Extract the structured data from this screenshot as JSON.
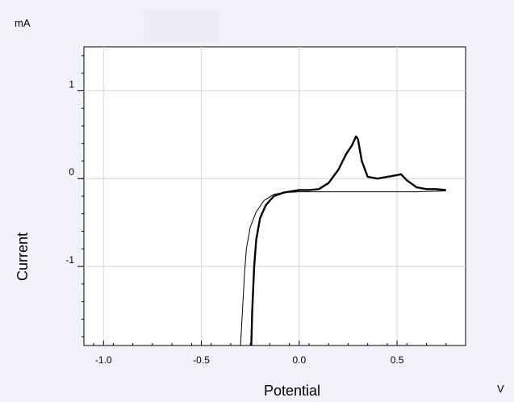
{
  "chart_data": {
    "type": "line",
    "ylabel": "Current",
    "xlabel": "Potential",
    "y_unit": "mA",
    "x_unit": "V",
    "xlim": [
      -1.1,
      0.85
    ],
    "ylim": [
      -1.9,
      1.5
    ],
    "x_ticks": [
      {
        "value": -1.0,
        "label": "-1.0"
      },
      {
        "value": -0.5,
        "label": "-0.5"
      },
      {
        "value": 0.0,
        "label": "0.0"
      },
      {
        "value": 0.5,
        "label": "0.5"
      }
    ],
    "y_ticks": [
      {
        "value": 1,
        "label": "1"
      },
      {
        "value": 0,
        "label": "0"
      },
      {
        "value": -1,
        "label": "-1"
      }
    ],
    "grid": true,
    "series": [
      {
        "style": "thick",
        "color": "#000000",
        "points": [
          [
            -0.245,
            -1.9
          ],
          [
            -0.24,
            -1.5
          ],
          [
            -0.23,
            -1.0
          ],
          [
            -0.22,
            -0.7
          ],
          [
            -0.2,
            -0.45
          ],
          [
            -0.17,
            -0.3
          ],
          [
            -0.13,
            -0.2
          ],
          [
            -0.08,
            -0.16
          ],
          [
            0.0,
            -0.13
          ],
          [
            0.05,
            -0.13
          ],
          [
            0.1,
            -0.12
          ],
          [
            0.15,
            -0.05
          ],
          [
            0.2,
            0.1
          ],
          [
            0.24,
            0.28
          ],
          [
            0.27,
            0.38
          ],
          [
            0.29,
            0.48
          ],
          [
            0.3,
            0.45
          ],
          [
            0.32,
            0.2
          ],
          [
            0.35,
            0.02
          ],
          [
            0.4,
            0.0
          ],
          [
            0.45,
            0.02
          ],
          [
            0.5,
            0.04
          ],
          [
            0.52,
            0.05
          ],
          [
            0.55,
            -0.02
          ],
          [
            0.6,
            -0.1
          ],
          [
            0.65,
            -0.12
          ],
          [
            0.7,
            -0.12
          ],
          [
            0.75,
            -0.13
          ]
        ]
      },
      {
        "style": "thin",
        "color": "#000000",
        "points": [
          [
            -0.3,
            -1.9
          ],
          [
            -0.29,
            -1.5
          ],
          [
            -0.28,
            -1.1
          ],
          [
            -0.27,
            -0.8
          ],
          [
            -0.25,
            -0.55
          ],
          [
            -0.22,
            -0.38
          ],
          [
            -0.18,
            -0.25
          ],
          [
            -0.13,
            -0.18
          ],
          [
            -0.08,
            -0.16
          ],
          [
            0.0,
            -0.15
          ],
          [
            0.2,
            -0.15
          ],
          [
            0.4,
            -0.15
          ],
          [
            0.6,
            -0.15
          ],
          [
            0.75,
            -0.14
          ]
        ]
      }
    ]
  }
}
